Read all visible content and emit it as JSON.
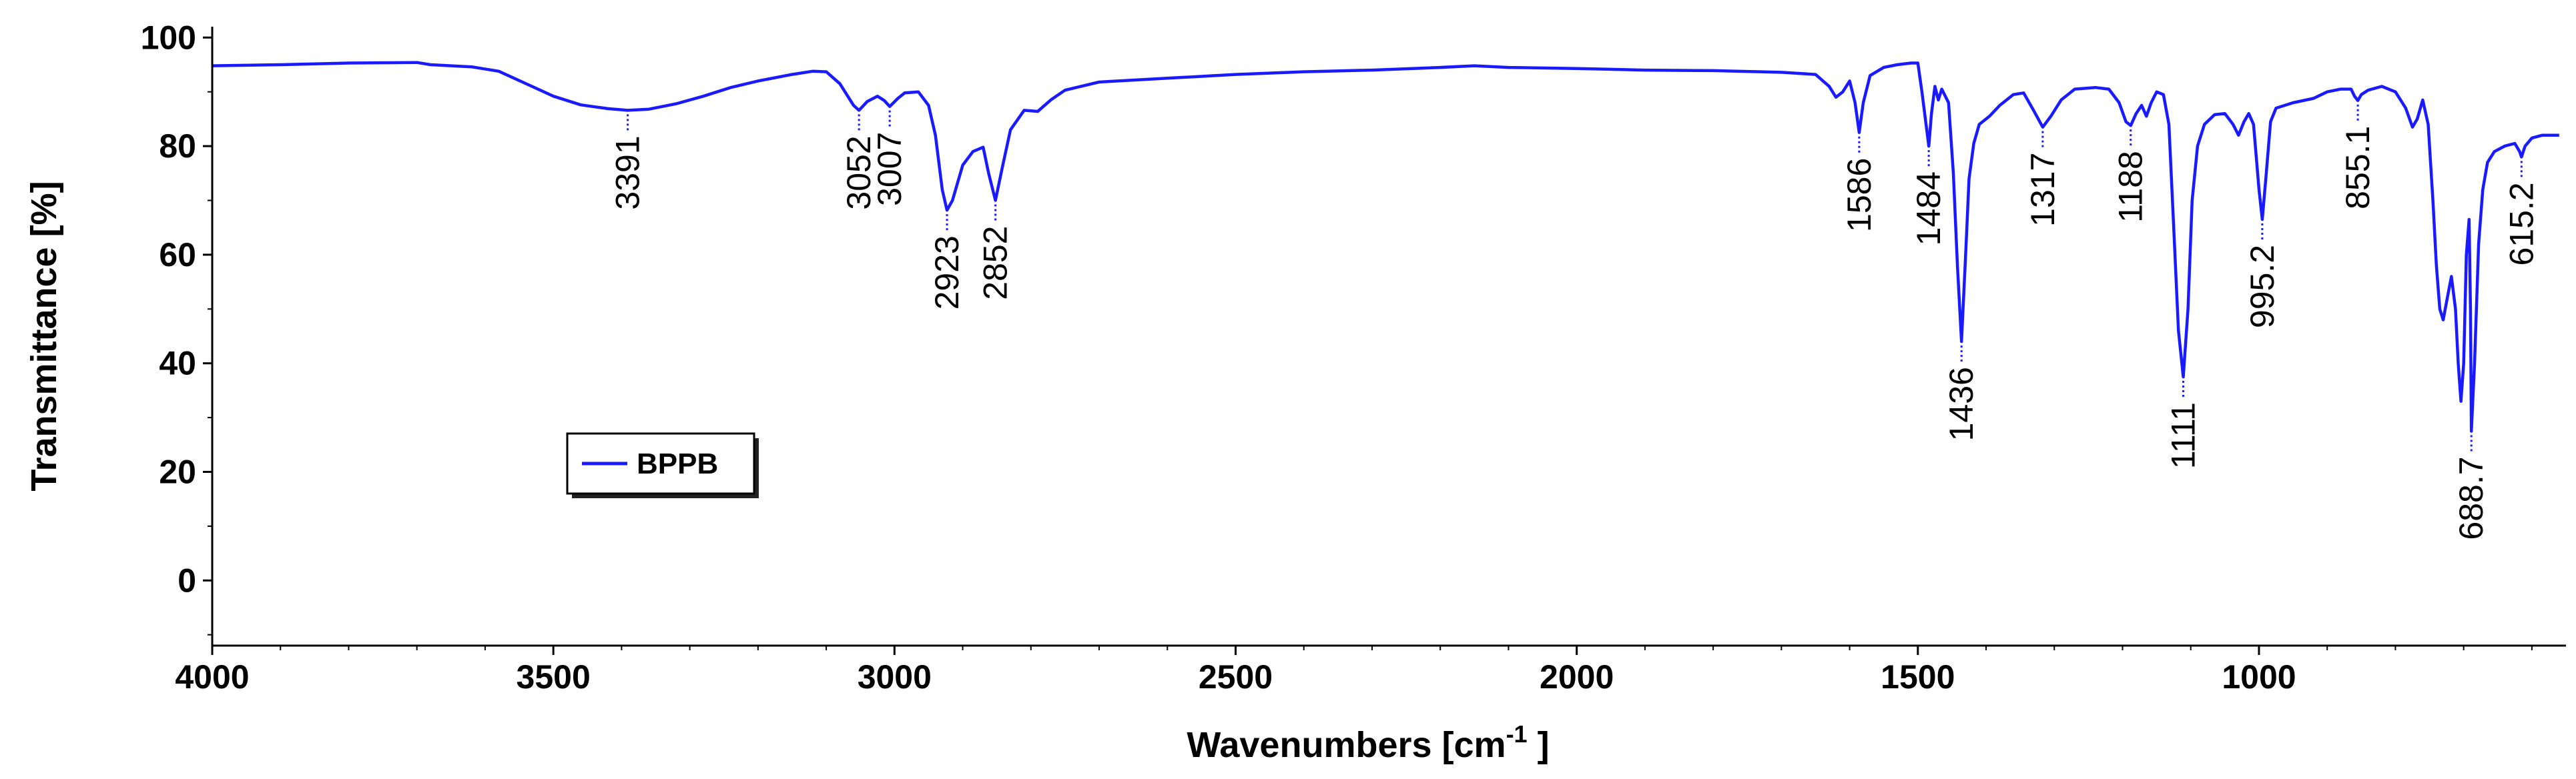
{
  "chart_data": {
    "type": "line",
    "title": "",
    "xlabel": "Wavenumbers [cm",
    "xlabel_sup": "-1",
    "xlabel_suffix": " ]",
    "ylabel": "Transmittance [%]",
    "xlim": [
      4000,
      550
    ],
    "ylim": [
      -12,
      102
    ],
    "x_reversed": true,
    "x_ticks": [
      4000,
      3500,
      3000,
      2500,
      2000,
      1500,
      1000
    ],
    "x_tick_labels": [
      "4000",
      "3500",
      "3000",
      "2500",
      "2000",
      "1500",
      "1000"
    ],
    "y_ticks": [
      0,
      20,
      40,
      60,
      80,
      100
    ],
    "y_tick_labels": [
      "0",
      "20",
      "40",
      "60",
      "80",
      "100"
    ],
    "grid": false,
    "legend_position": "left-middle",
    "series": [
      {
        "name": "BPPB",
        "color": "#1a1aff",
        "points": [
          [
            4000,
            94.8
          ],
          [
            3900,
            95.0
          ],
          [
            3800,
            95.3
          ],
          [
            3700,
            95.4
          ],
          [
            3680,
            95.0
          ],
          [
            3620,
            94.6
          ],
          [
            3580,
            93.8
          ],
          [
            3540,
            91.5
          ],
          [
            3500,
            89.2
          ],
          [
            3460,
            87.6
          ],
          [
            3420,
            86.9
          ],
          [
            3391,
            86.6
          ],
          [
            3360,
            86.8
          ],
          [
            3320,
            87.8
          ],
          [
            3280,
            89.2
          ],
          [
            3240,
            90.8
          ],
          [
            3200,
            92.0
          ],
          [
            3150,
            93.2
          ],
          [
            3120,
            93.8
          ],
          [
            3100,
            93.7
          ],
          [
            3080,
            91.5
          ],
          [
            3060,
            87.5
          ],
          [
            3052,
            86.6
          ],
          [
            3040,
            88.2
          ],
          [
            3025,
            89.2
          ],
          [
            3015,
            88.4
          ],
          [
            3007,
            87.3
          ],
          [
            2995,
            88.8
          ],
          [
            2985,
            89.8
          ],
          [
            2965,
            90.0
          ],
          [
            2950,
            87.5
          ],
          [
            2940,
            82.0
          ],
          [
            2930,
            72.0
          ],
          [
            2923,
            68.2
          ],
          [
            2915,
            70.0
          ],
          [
            2900,
            76.5
          ],
          [
            2885,
            79.0
          ],
          [
            2870,
            79.8
          ],
          [
            2862,
            75.0
          ],
          [
            2852,
            70.0
          ],
          [
            2842,
            76.0
          ],
          [
            2830,
            83.0
          ],
          [
            2810,
            86.6
          ],
          [
            2790,
            86.4
          ],
          [
            2770,
            88.6
          ],
          [
            2750,
            90.3
          ],
          [
            2700,
            91.8
          ],
          [
            2600,
            92.5
          ],
          [
            2500,
            93.2
          ],
          [
            2400,
            93.7
          ],
          [
            2300,
            94.0
          ],
          [
            2200,
            94.5
          ],
          [
            2150,
            94.8
          ],
          [
            2100,
            94.5
          ],
          [
            2000,
            94.3
          ],
          [
            1900,
            94.0
          ],
          [
            1800,
            93.9
          ],
          [
            1700,
            93.6
          ],
          [
            1650,
            93.2
          ],
          [
            1630,
            91.0
          ],
          [
            1620,
            89.0
          ],
          [
            1610,
            90.0
          ],
          [
            1600,
            92.0
          ],
          [
            1592,
            88.0
          ],
          [
            1586,
            82.5
          ],
          [
            1580,
            88.0
          ],
          [
            1570,
            93.0
          ],
          [
            1550,
            94.5
          ],
          [
            1530,
            95.0
          ],
          [
            1510,
            95.3
          ],
          [
            1500,
            95.3
          ],
          [
            1494,
            90.0
          ],
          [
            1488,
            84.0
          ],
          [
            1484,
            80.0
          ],
          [
            1480,
            86.0
          ],
          [
            1475,
            91.0
          ],
          [
            1470,
            88.5
          ],
          [
            1465,
            90.5
          ],
          [
            1455,
            88.0
          ],
          [
            1448,
            75.0
          ],
          [
            1442,
            58.0
          ],
          [
            1436,
            44.0
          ],
          [
            1430,
            60.0
          ],
          [
            1425,
            74.0
          ],
          [
            1418,
            80.5
          ],
          [
            1410,
            84.0
          ],
          [
            1395,
            85.5
          ],
          [
            1380,
            87.5
          ],
          [
            1360,
            89.5
          ],
          [
            1345,
            89.8
          ],
          [
            1330,
            86.5
          ],
          [
            1317,
            83.5
          ],
          [
            1305,
            85.5
          ],
          [
            1290,
            88.5
          ],
          [
            1270,
            90.5
          ],
          [
            1240,
            90.8
          ],
          [
            1220,
            90.5
          ],
          [
            1205,
            88.0
          ],
          [
            1195,
            84.5
          ],
          [
            1188,
            83.8
          ],
          [
            1180,
            86.0
          ],
          [
            1172,
            87.5
          ],
          [
            1165,
            85.5
          ],
          [
            1158,
            88.0
          ],
          [
            1150,
            90.0
          ],
          [
            1140,
            89.5
          ],
          [
            1132,
            84.0
          ],
          [
            1125,
            65.0
          ],
          [
            1118,
            46.0
          ],
          [
            1111,
            37.5
          ],
          [
            1104,
            50.0
          ],
          [
            1098,
            70.0
          ],
          [
            1090,
            80.0
          ],
          [
            1080,
            84.0
          ],
          [
            1065,
            85.8
          ],
          [
            1050,
            86.0
          ],
          [
            1038,
            84.0
          ],
          [
            1030,
            82.0
          ],
          [
            1022,
            84.5
          ],
          [
            1015,
            86.0
          ],
          [
            1008,
            84.0
          ],
          [
            1000,
            72.0
          ],
          [
            995.2,
            66.5
          ],
          [
            990,
            74.0
          ],
          [
            983,
            84.5
          ],
          [
            975,
            87.0
          ],
          [
            950,
            88.0
          ],
          [
            920,
            88.8
          ],
          [
            900,
            90.0
          ],
          [
            880,
            90.5
          ],
          [
            865,
            90.5
          ],
          [
            860,
            89.2
          ],
          [
            855.1,
            88.4
          ],
          [
            850,
            89.5
          ],
          [
            840,
            90.3
          ],
          [
            820,
            91.0
          ],
          [
            800,
            90.0
          ],
          [
            785,
            87.0
          ],
          [
            775,
            83.5
          ],
          [
            768,
            85.0
          ],
          [
            760,
            88.5
          ],
          [
            752,
            84.0
          ],
          [
            745,
            70.0
          ],
          [
            740,
            58.0
          ],
          [
            735,
            50.0
          ],
          [
            730,
            48.0
          ],
          [
            724,
            52.0
          ],
          [
            718,
            56.0
          ],
          [
            712,
            50.0
          ],
          [
            708,
            40.0
          ],
          [
            704,
            33.0
          ],
          [
            700,
            40.0
          ],
          [
            696,
            60.0
          ],
          [
            692,
            66.5
          ],
          [
            690,
            50.0
          ],
          [
            688.7,
            27.5
          ],
          [
            684,
            40.0
          ],
          [
            678,
            62.0
          ],
          [
            672,
            72.0
          ],
          [
            665,
            77.0
          ],
          [
            655,
            79.0
          ],
          [
            640,
            80.0
          ],
          [
            625,
            80.5
          ],
          [
            618,
            79.0
          ],
          [
            615.2,
            78.0
          ],
          [
            610,
            80.0
          ],
          [
            600,
            81.5
          ],
          [
            585,
            82.0
          ],
          [
            560,
            82.0
          ]
        ]
      }
    ],
    "annotations": [
      {
        "text": "3391",
        "x": 3391,
        "y": 86.6,
        "side": "below"
      },
      {
        "text": "3052",
        "x": 3052,
        "y": 86.6,
        "side": "below"
      },
      {
        "text": "3007",
        "x": 3007,
        "y": 87.3,
        "side": "below"
      },
      {
        "text": "2923",
        "x": 2923,
        "y": 68.2,
        "side": "below"
      },
      {
        "text": "2852",
        "x": 2852,
        "y": 70.0,
        "side": "below"
      },
      {
        "text": "1586",
        "x": 1586,
        "y": 82.5,
        "side": "below"
      },
      {
        "text": "1484",
        "x": 1484,
        "y": 80.0,
        "side": "below"
      },
      {
        "text": "1436",
        "x": 1436,
        "y": 44.0,
        "side": "below"
      },
      {
        "text": "1317",
        "x": 1317,
        "y": 83.5,
        "side": "below"
      },
      {
        "text": "1188",
        "x": 1188,
        "y": 83.8,
        "side": "below"
      },
      {
        "text": "1111",
        "x": 1111,
        "y": 37.5,
        "side": "below"
      },
      {
        "text": "995.2",
        "x": 995.2,
        "y": 66.5,
        "side": "below"
      },
      {
        "text": "855.1",
        "x": 855.1,
        "y": 88.4,
        "side": "below"
      },
      {
        "text": "688.7",
        "x": 688.7,
        "y": 27.5,
        "side": "below"
      },
      {
        "text": "615.2",
        "x": 615.2,
        "y": 78.0,
        "side": "below"
      }
    ]
  }
}
